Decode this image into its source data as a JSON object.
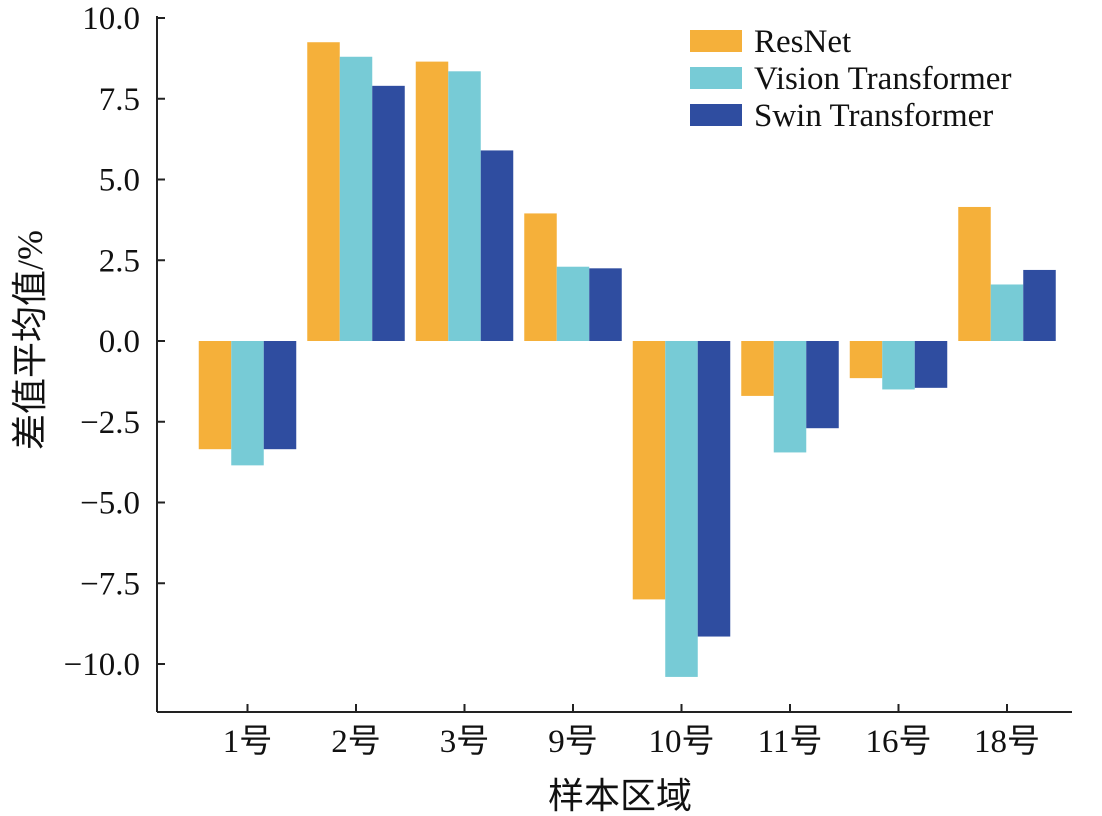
{
  "chart_data": {
    "type": "bar",
    "title": "",
    "xlabel": "样本区域",
    "ylabel": "差值平均值/%",
    "ylim": [
      -11.5,
      10.0
    ],
    "yticks": [
      10.0,
      7.5,
      5.0,
      2.5,
      0.0,
      -2.5,
      -5.0,
      -7.5,
      -10.0
    ],
    "ytick_labels": [
      "10.0",
      "7.5",
      "5.0",
      "2.5",
      "0.0",
      "−2.5",
      "−5.0",
      "−7.5",
      "−10.0"
    ],
    "categories": [
      "1号",
      "2号",
      "3号",
      "9号",
      "10号",
      "11号",
      "16号",
      "18号"
    ],
    "series": [
      {
        "name": "ResNet",
        "color": "#F5B03A",
        "values": [
          -3.35,
          9.25,
          8.65,
          3.95,
          -8.0,
          -1.7,
          -1.15,
          4.15
        ]
      },
      {
        "name": "Vision Transformer",
        "color": "#77CBD6",
        "values": [
          -3.85,
          8.8,
          8.35,
          2.3,
          -10.4,
          -3.45,
          -1.5,
          1.75
        ]
      },
      {
        "name": "Swin Transformer",
        "color": "#2F4DA0",
        "values": [
          -3.35,
          7.9,
          5.9,
          2.25,
          -9.15,
          -2.7,
          -1.45,
          2.2
        ]
      }
    ],
    "legend": "top-right",
    "grid": false
  }
}
